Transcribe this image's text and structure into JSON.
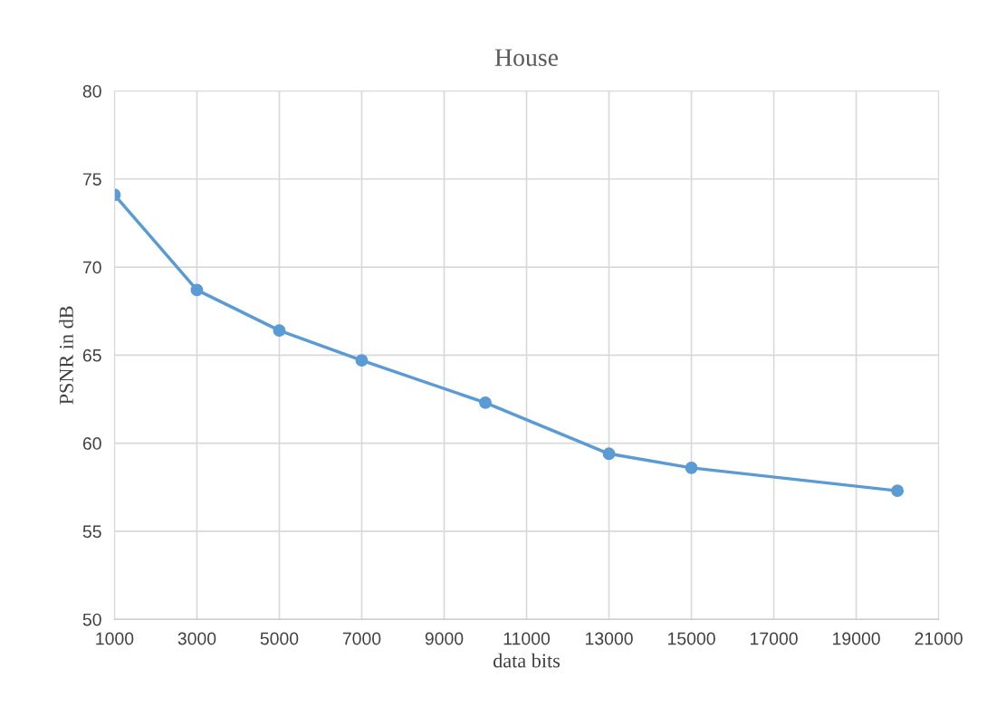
{
  "chart_data": {
    "type": "line",
    "title": "House",
    "xlabel": "data bits",
    "ylabel": "PSNR in dB",
    "x": [
      1000,
      3000,
      5000,
      7000,
      10000,
      13000,
      15000,
      20000
    ],
    "series": [
      {
        "color": "#5b9bd5",
        "values": [
          74.1,
          68.7,
          66.4,
          64.7,
          62.3,
          59.4,
          58.6,
          57.3
        ]
      }
    ],
    "xlim": [
      1000,
      21000
    ],
    "xticks": [
      1000,
      3000,
      5000,
      7000,
      9000,
      11000,
      13000,
      15000,
      17000,
      19000,
      21000
    ],
    "ylim": [
      50,
      80
    ],
    "yticks": [
      50,
      55,
      60,
      65,
      70,
      75,
      80
    ],
    "grid": true,
    "marker": "circle",
    "line_style": "solid",
    "legend": false
  }
}
